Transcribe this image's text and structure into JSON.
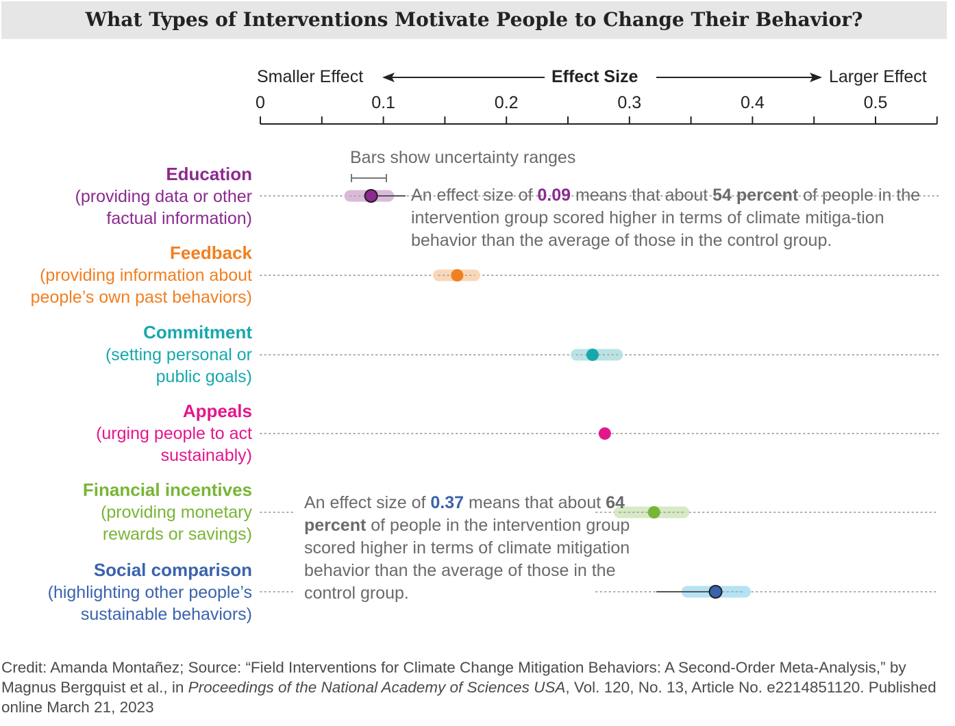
{
  "chart_data": {
    "type": "dot-range",
    "title": "What Types of Interventions Motivate People to Change Their Behavior?",
    "axis": {
      "label": "Effect Size",
      "left_label": "Smaller Effect",
      "right_label": "Larger Effect",
      "ticks": [
        "0",
        "0.1",
        "0.2",
        "0.3",
        "0.4",
        "0.5"
      ],
      "tick_values": [
        0,
        0.1,
        0.2,
        0.3,
        0.4,
        0.5
      ],
      "minor_tick_step": 0.05,
      "xlim": [
        0,
        0.55
      ]
    },
    "legend_note": "Bars show uncertainty ranges",
    "categories": [
      {
        "label": "Education",
        "desc": [
          "(providing data or other",
          "factual information)"
        ],
        "color": "#8b2a8f",
        "range_color": "#d7b3d8",
        "value": 0.09,
        "low": 0.073,
        "high": 0.104
      },
      {
        "label": "Feedback",
        "desc": [
          "(providing information about",
          "people’s own past behaviors)"
        ],
        "color": "#f07f22",
        "range_color": "#f9d4b3",
        "value": 0.16,
        "low": 0.145,
        "high": 0.174
      },
      {
        "label": "Commitment",
        "desc": [
          "(setting personal or",
          "public goals)"
        ],
        "color": "#17a8ad",
        "range_color": "#b3e1e3",
        "value": 0.27,
        "low": 0.257,
        "high": 0.29
      },
      {
        "label": "Appeals",
        "desc": [
          "(urging people to act",
          "sustainably)"
        ],
        "color": "#e3178c",
        "range_color": null,
        "value": 0.28,
        "low": null,
        "high": null
      },
      {
        "label": "Financial incentives",
        "desc": [
          "(providing monetary",
          "rewards or savings)"
        ],
        "color": "#78b536",
        "range_color": "#d3e7bf",
        "value": 0.32,
        "low": 0.292,
        "high": 0.344
      },
      {
        "label": "Social comparison",
        "desc": [
          "(highlighting other people’s",
          "sustainable behaviors)"
        ],
        "color": "#3a63ad",
        "range_color": "#aee0f3",
        "value": 0.37,
        "low": 0.347,
        "high": 0.394
      }
    ],
    "annotations": [
      {
        "pre": "An effect size of ",
        "value": "0.09",
        "mid": " means that about ",
        "pct": "54 percent",
        "post": " of people in the intervention group scored higher in terms of climate mitiga-tion behavior than the average of those in the control group."
      },
      {
        "pre": "An effect size of ",
        "value": "0.37",
        "mid": " means that about ",
        "pct": "64 percent",
        "post": " of people in the intervention group scored higher in terms of climate mitigation behavior than the average of those in the control group."
      }
    ]
  },
  "footer": {
    "pre": "Credit: Amanda Montañez; Source: “Field Interventions for Climate Change Mitigation Behaviors: A Second-Order Meta-Analysis,” by Magnus Bergquist et al., in ",
    "journal": "Proceedings of the National Academy of Sciences USA",
    "post": ", Vol. 120, No. 13, Article No. e2214851120. Published online March 21, 2023"
  }
}
